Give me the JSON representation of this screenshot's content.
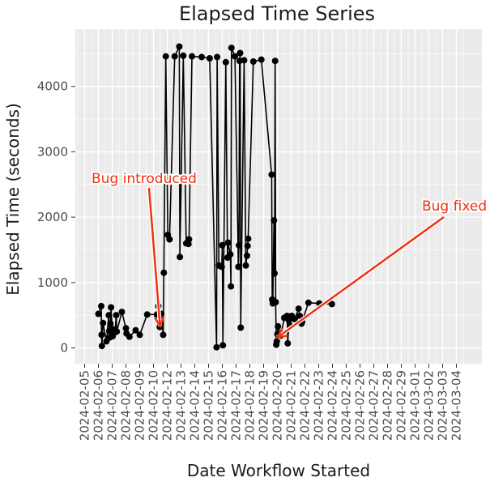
{
  "chart_data": {
    "type": "line",
    "title": "Elapsed Time Series",
    "xlabel": "Date Workflow Started",
    "ylabel": "Elapsed Time (seconds)",
    "x_ticks": [
      "2024-02-05",
      "2024-02-06",
      "2024-02-07",
      "2024-02-08",
      "2024-02-09",
      "2024-02-10",
      "2024-02-12",
      "2024-02-13",
      "2024-02-14",
      "2024-02-15",
      "2024-02-16",
      "2024-02-17",
      "2024-02-18",
      "2024-02-19",
      "2024-02-20",
      "2024-02-21",
      "2024-02-22",
      "2024-02-23",
      "2024-02-24",
      "2024-02-25",
      "2024-02-26",
      "2024-02-27",
      "2024-02-28",
      "2024-02-29",
      "2024-03-01",
      "2024-03-02",
      "2024-03-03",
      "2024-03-04"
    ],
    "y_ticks": [
      0,
      1000,
      2000,
      3000,
      4000
    ],
    "ylim": [
      -200,
      4850
    ],
    "grid": true,
    "series": [
      {
        "points": [
          [
            "2024-02-06 00:00",
            520
          ],
          [
            "2024-02-06 05:00",
            640
          ],
          [
            "2024-02-06 05:30",
            200
          ],
          [
            "2024-02-06 06:00",
            30
          ],
          [
            "2024-02-06 08:00",
            380
          ],
          [
            "2024-02-06 14:00",
            100
          ],
          [
            "2024-02-06 18:00",
            500
          ],
          [
            "2024-02-06 19:00",
            260
          ],
          [
            "2024-02-06 20:00",
            160
          ],
          [
            "2024-02-06 21:00",
            370
          ],
          [
            "2024-02-06 22:00",
            620
          ],
          [
            "2024-02-07 00:00",
            290
          ],
          [
            "2024-02-07 01:00",
            180
          ],
          [
            "2024-02-07 05:00",
            240
          ],
          [
            "2024-02-07 07:00",
            500
          ],
          [
            "2024-02-07 08:00",
            250
          ],
          [
            "2024-02-07 17:00",
            550
          ],
          [
            "2024-02-08 00:00",
            300
          ],
          [
            "2024-02-08 01:00",
            220
          ],
          [
            "2024-02-08 06:00",
            170
          ],
          [
            "2024-02-08 17:00",
            270
          ],
          [
            "2024-02-09 00:00",
            200
          ],
          [
            "2024-02-09 13:00",
            510
          ],
          [
            "2024-02-10 12:00",
            510
          ],
          [
            "2024-02-10 17:00",
            640
          ],
          [
            "2024-02-10 22:00",
            320
          ],
          [
            "2024-02-11 03:00",
            520
          ],
          [
            "2024-02-11 10:00",
            200
          ],
          [
            "2024-02-11 12:00",
            1150
          ],
          [
            "2024-02-11 19:00",
            4460
          ],
          [
            "2024-02-12 01:00",
            1730
          ],
          [
            "2024-02-12 04:00",
            1660
          ],
          [
            "2024-02-12 13:00",
            4460
          ],
          [
            "2024-02-12 21:00",
            4610
          ],
          [
            "2024-02-12 22:00",
            1390
          ],
          [
            "2024-02-13 04:00",
            4470
          ],
          [
            "2024-02-13 09:00",
            1600
          ],
          [
            "2024-02-13 13:00",
            1590
          ],
          [
            "2024-02-13 14:00",
            1660
          ],
          [
            "2024-02-13 19:00",
            4460
          ],
          [
            "2024-02-14 12:00",
            4450
          ],
          [
            "2024-02-15 02:00",
            4430
          ],
          [
            "2024-02-15 14:00",
            10
          ],
          [
            "2024-02-15 15:00",
            4450
          ],
          [
            "2024-02-15 18:00",
            1260
          ],
          [
            "2024-02-15 21:00",
            1250
          ],
          [
            "2024-02-15 23:00",
            1240
          ],
          [
            "2024-02-16 00:00",
            1570
          ],
          [
            "2024-02-16 01:00",
            40
          ],
          [
            "2024-02-16 06:00",
            4370
          ],
          [
            "2024-02-16 09:00",
            1380
          ],
          [
            "2024-02-16 10:00",
            1610
          ],
          [
            "2024-02-16 14:00",
            1430
          ],
          [
            "2024-02-16 15:00",
            940
          ],
          [
            "2024-02-16 16:00",
            4590
          ],
          [
            "2024-02-16 22:00",
            4460
          ],
          [
            "2024-02-17 04:00",
            1240
          ],
          [
            "2024-02-17 05:00",
            1570
          ],
          [
            "2024-02-17 06:00",
            4390
          ],
          [
            "2024-02-17 07:00",
            4510
          ],
          [
            "2024-02-17 08:00",
            310
          ],
          [
            "2024-02-17 14:00",
            4400
          ],
          [
            "2024-02-17 17:00",
            1260
          ],
          [
            "2024-02-17 19:00",
            1410
          ],
          [
            "2024-02-17 20:00",
            1560
          ],
          [
            "2024-02-17 21:00",
            1670
          ],
          [
            "2024-02-18 06:00",
            4380
          ],
          [
            "2024-02-18 20:00",
            4410
          ],
          [
            "2024-02-19 14:00",
            2650
          ],
          [
            "2024-02-19 15:00",
            740
          ],
          [
            "2024-02-19 16:00",
            680
          ],
          [
            "2024-02-19 18:00",
            1950
          ],
          [
            "2024-02-19 19:00",
            1140
          ],
          [
            "2024-02-19 20:00",
            4390
          ],
          [
            "2024-02-19 21:00",
            700
          ],
          [
            "2024-02-19 22:00",
            50
          ],
          [
            "2024-02-19 23:00",
            100
          ],
          [
            "2024-02-20 00:00",
            210
          ],
          [
            "2024-02-20 01:00",
            330
          ],
          [
            "2024-02-20 06:00",
            190
          ],
          [
            "2024-02-20 12:00",
            460
          ],
          [
            "2024-02-20 17:00",
            490
          ],
          [
            "2024-02-20 18:00",
            70
          ],
          [
            "2024-02-20 20:00",
            420
          ],
          [
            "2024-02-20 23:00",
            330
          ],
          [
            "2024-02-21 01:00",
            490
          ],
          [
            "2024-02-21 06:00",
            440
          ],
          [
            "2024-02-21 13:00",
            600
          ],
          [
            "2024-02-21 15:00",
            490
          ],
          [
            "2024-02-21 18:00",
            370
          ],
          [
            "2024-02-21 19:00",
            400
          ],
          [
            "2024-02-22 06:00",
            690
          ],
          [
            "2024-02-23 01:00",
            680
          ],
          [
            "2024-02-23 23:00",
            670
          ]
        ]
      }
    ],
    "annotations": [
      {
        "text": "Bug introduced",
        "color": "#ee3311",
        "arrow_to": [
          "2024-02-10 23:00",
          330
        ]
      },
      {
        "text": "Bug fixed",
        "color": "#ee3311",
        "arrow_to": [
          "2024-02-20 00:00",
          160
        ]
      }
    ],
    "colors": {
      "panel": "#ebebeb",
      "grid": "#ffffff",
      "line": "#000000",
      "annotation": "#ee3311"
    }
  }
}
